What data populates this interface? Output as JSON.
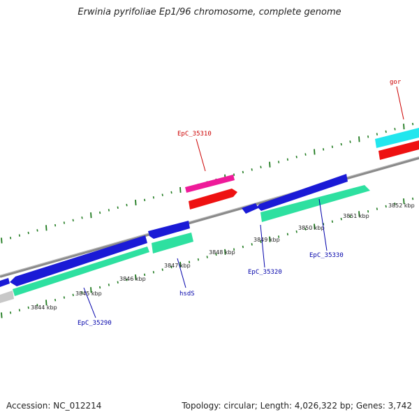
{
  "title": "Erwinia pyrifoliae Ep1/96 chromosome, complete genome",
  "footer": {
    "accession": "Accession: NC_012214",
    "summary": "Topology: circular; Length: 4,026,322 bp; Genes: 3,742"
  },
  "colors": {
    "backbone": "#8a8a8a",
    "tick": "#1e7a1e",
    "forward_label": "#cc0000",
    "reverse_label": "#0000aa",
    "cds_blue": "#1a1ad6",
    "cds_green": "#2ee0a0",
    "cds_red": "#ee1111",
    "cds_pink": "#ee1a99",
    "cds_cyan": "#22e6ee",
    "cds_gray": "#c8c8c8"
  },
  "map": {
    "scale_labels": [
      "3844 kbp",
      "3845 kbp",
      "3846 kbp",
      "3847 kbp",
      "3848 kbp",
      "3849 kbp",
      "3850 kbp",
      "3851 kbp",
      "3852 kbp"
    ],
    "forward_genes": [
      {
        "label": "EpC_35310"
      },
      {
        "label": "gor"
      }
    ],
    "reverse_genes": [
      {
        "label": "EpC_35290"
      },
      {
        "label": "hsdS"
      },
      {
        "label": "EpC_35320"
      },
      {
        "label": "EpC_35330"
      }
    ]
  }
}
